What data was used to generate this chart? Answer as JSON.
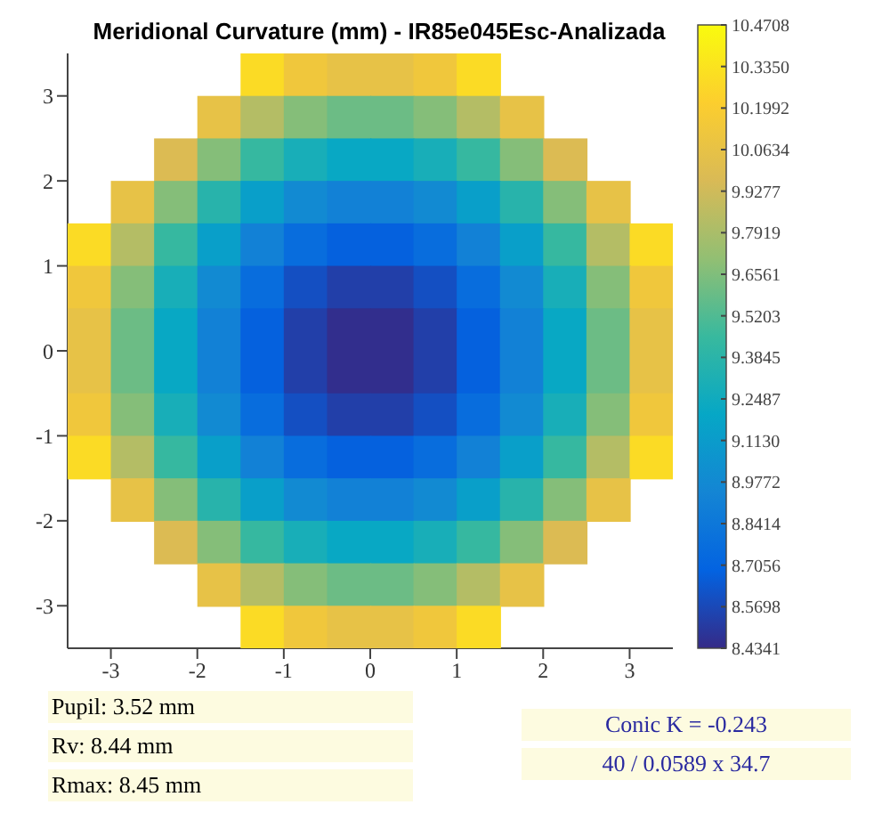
{
  "chart_data": {
    "type": "heatmap",
    "title": "Meridional Curvature (mm) - IR85e045Esc-Analizada",
    "xlim": [
      -3.5,
      3.5
    ],
    "ylim": [
      -3.5,
      3.5
    ],
    "xticks": [
      -3,
      -2,
      -1,
      0,
      1,
      2,
      3
    ],
    "yticks": [
      -3,
      -2,
      -1,
      0,
      1,
      2,
      3
    ],
    "clim": [
      8.4341,
      10.4708
    ],
    "cticks": [
      8.4341,
      8.5698,
      8.7056,
      8.8414,
      8.9772,
      {
        "value": 9.113,
        "label": "9.1130"
      },
      9.2487,
      9.3845,
      9.5203,
      9.6561,
      9.7919,
      9.9277,
      10.0634,
      10.1992,
      {
        "value": 10.335,
        "label": "10.3350"
      },
      10.4708
    ],
    "cells": [
      [
        null,
        null,
        null,
        null,
        10.29,
        10.13,
        10.06,
        10.06,
        10.13,
        10.29,
        null,
        null,
        null,
        null
      ],
      [
        null,
        null,
        null,
        10.06,
        9.83,
        9.67,
        9.6,
        9.6,
        9.67,
        9.83,
        10.06,
        null,
        null,
        null
      ],
      [
        null,
        null,
        9.98,
        9.67,
        9.44,
        9.29,
        9.21,
        9.21,
        9.29,
        9.44,
        9.67,
        9.98,
        null,
        null
      ],
      [
        null,
        10.06,
        9.67,
        9.37,
        9.14,
        8.98,
        8.91,
        8.91,
        8.98,
        9.14,
        9.37,
        9.67,
        10.06,
        null
      ],
      [
        10.29,
        9.83,
        9.44,
        9.14,
        8.91,
        8.76,
        8.68,
        8.68,
        8.76,
        8.91,
        9.14,
        9.44,
        9.83,
        10.29
      ],
      [
        10.13,
        9.67,
        9.29,
        8.98,
        8.76,
        8.6,
        8.53,
        8.53,
        8.6,
        8.76,
        8.98,
        9.29,
        9.67,
        10.13
      ],
      [
        10.06,
        9.6,
        9.21,
        8.91,
        8.68,
        8.53,
        8.45,
        8.45,
        8.53,
        8.68,
        8.91,
        9.21,
        9.6,
        10.06
      ],
      [
        10.06,
        9.6,
        9.21,
        8.91,
        8.68,
        8.53,
        8.45,
        8.45,
        8.53,
        8.68,
        8.91,
        9.21,
        9.6,
        10.06
      ],
      [
        10.13,
        9.67,
        9.29,
        8.98,
        8.76,
        8.6,
        8.53,
        8.53,
        8.6,
        8.76,
        8.98,
        9.29,
        9.67,
        10.13
      ],
      [
        10.29,
        9.83,
        9.44,
        9.14,
        8.91,
        8.76,
        8.68,
        8.68,
        8.76,
        8.91,
        9.14,
        9.44,
        9.83,
        10.29
      ],
      [
        null,
        10.06,
        9.67,
        9.37,
        9.14,
        8.98,
        8.91,
        8.91,
        8.98,
        9.14,
        9.37,
        9.67,
        10.06,
        null
      ],
      [
        null,
        null,
        9.98,
        9.67,
        9.44,
        9.29,
        9.21,
        9.21,
        9.29,
        9.44,
        9.67,
        9.98,
        null,
        null
      ],
      [
        null,
        null,
        null,
        10.06,
        9.83,
        9.67,
        9.6,
        9.6,
        9.67,
        9.83,
        10.06,
        null,
        null,
        null
      ],
      [
        null,
        null,
        null,
        null,
        10.29,
        10.13,
        10.06,
        10.06,
        10.13,
        10.29,
        null,
        null,
        null,
        null
      ]
    ],
    "annotations": [
      "Pupil: 3.52 mm",
      "Rv: 8.44 mm",
      "Rmax: 8.45 mm",
      "Conic K = -0.243",
      "40 / 0.0589 x 34.7"
    ]
  }
}
